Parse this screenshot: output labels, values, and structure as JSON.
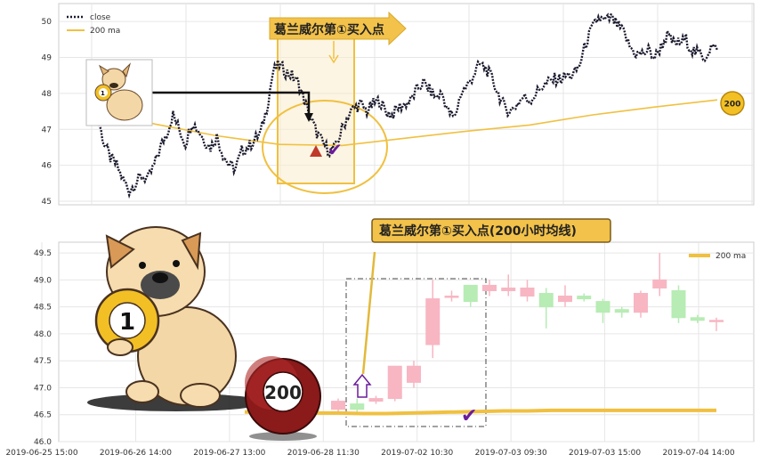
{
  "chart_data": [
    {
      "type": "line",
      "title": "",
      "legend": {
        "placement": "top-left",
        "entries": [
          "close",
          "200 ma"
        ]
      },
      "ylim": [
        44.9,
        50.5
      ],
      "y_ticks": [
        "45",
        "46",
        "47",
        "48",
        "49",
        "50"
      ],
      "grid": true,
      "annotation_label": "葛兰威尔第①买入点",
      "ma_badge": "200",
      "series": [
        {
          "name": "close",
          "style": "dotted",
          "color": "#1a1a2e",
          "x": [
            0,
            4,
            8,
            12,
            16,
            20,
            24,
            28,
            32,
            36,
            40,
            44,
            48,
            52,
            56,
            60,
            64,
            68,
            72,
            76,
            80,
            84,
            88,
            92,
            96,
            100,
            104,
            108,
            112,
            116,
            120,
            124,
            128,
            132,
            136,
            140,
            144,
            148,
            152,
            156,
            160,
            164,
            168,
            172,
            176,
            180,
            184,
            188,
            192,
            196,
            200,
            204,
            208,
            212,
            216,
            220,
            224,
            228,
            232,
            236,
            240,
            244,
            248,
            252,
            256,
            260,
            264,
            268,
            272,
            276,
            280,
            284,
            288,
            292,
            296,
            300,
            304,
            308,
            312,
            316,
            320,
            324,
            328,
            332,
            336,
            340,
            344,
            348,
            352,
            356,
            360,
            364,
            368,
            372,
            376,
            380,
            384,
            388,
            392,
            396,
            400
          ],
          "values": [
            48.0,
            47.3,
            46.6,
            46.2,
            46.0,
            45.6,
            45.3,
            45.5,
            45.7,
            45.6,
            46.0,
            46.5,
            46.9,
            47.4,
            47.0,
            46.6,
            47.2,
            47.0,
            46.7,
            46.5,
            46.8,
            46.3,
            46.0,
            45.9,
            46.4,
            46.5,
            46.7,
            46.9,
            47.6,
            48.6,
            48.8,
            48.6,
            48.5,
            48.3,
            47.8,
            47.3,
            46.9,
            46.6,
            46.4,
            46.5,
            47.0,
            47.4,
            47.6,
            47.7,
            47.5,
            47.7,
            47.8,
            47.5,
            47.4,
            47.6,
            47.7,
            47.8,
            48.1,
            48.3,
            48.1,
            47.9,
            48.0,
            47.5,
            47.3,
            48.0,
            48.2,
            48.5,
            48.8,
            48.7,
            48.4,
            48.0,
            47.6,
            47.5,
            47.7,
            47.9,
            47.8,
            48.0,
            48.2,
            48.3,
            48.4,
            48.4,
            48.5,
            48.5,
            48.8,
            49.4,
            49.8,
            50.1,
            50.0,
            50.1,
            49.9,
            49.7,
            49.3,
            49.1,
            49.1,
            49.2,
            49.0,
            49.3,
            49.6,
            49.4,
            49.4,
            49.5,
            49.2,
            49.1,
            49.0,
            49.3,
            49.2
          ]
        },
        {
          "name": "200 ma",
          "style": "solid",
          "color": "#f0c040",
          "x": [
            0,
            40,
            80,
            120,
            160,
            200,
            240,
            280,
            320,
            360,
            400
          ],
          "values": [
            47.8,
            47.15,
            46.82,
            46.58,
            46.55,
            46.75,
            46.95,
            47.12,
            47.4,
            47.62,
            47.82
          ]
        }
      ]
    },
    {
      "type": "candlestick",
      "title": "",
      "legend": {
        "placement": "top-right",
        "entries": [
          "200 ma"
        ]
      },
      "ylim": [
        46.0,
        49.7
      ],
      "y_ticks": [
        "46.0",
        "46.5",
        "47.0",
        "47.5",
        "48.0",
        "48.5",
        "49.0",
        "49.5"
      ],
      "x_ticks": [
        "2019-06-25 15:00",
        "2019-06-26 14:00",
        "2019-06-27 13:00",
        "2019-06-28 11:30",
        "2019-07-02 10:30",
        "2019-07-03 09:30",
        "2019-07-03 15:00",
        "2019-07-04 14:00"
      ],
      "grid": true,
      "annotation_label": "葛兰威尔第①买入点(200小时均线)",
      "ball_labels": {
        "one": "1",
        "two_hundred": "200"
      },
      "candles": [
        {
          "o": 46.6,
          "c": 46.75,
          "h": 46.8,
          "l": 46.55
        },
        {
          "o": 46.7,
          "c": 46.6,
          "h": 46.8,
          "l": 46.55
        },
        {
          "o": 46.75,
          "c": 46.8,
          "h": 46.85,
          "l": 46.7
        },
        {
          "o": 46.8,
          "c": 47.4,
          "h": 47.4,
          "l": 46.75
        },
        {
          "o": 47.1,
          "c": 47.4,
          "h": 47.5,
          "l": 47.0
        },
        {
          "o": 47.8,
          "c": 48.65,
          "h": 49.0,
          "l": 47.55
        },
        {
          "o": 48.7,
          "c": 48.7,
          "h": 48.8,
          "l": 48.6
        },
        {
          "o": 48.9,
          "c": 48.6,
          "h": 48.9,
          "l": 48.5
        },
        {
          "o": 48.8,
          "c": 48.9,
          "h": 49.0,
          "l": 48.7
        },
        {
          "o": 48.8,
          "c": 48.85,
          "h": 49.1,
          "l": 48.7
        },
        {
          "o": 48.7,
          "c": 48.85,
          "h": 49.0,
          "l": 48.6
        },
        {
          "o": 48.75,
          "c": 48.5,
          "h": 48.85,
          "l": 48.1
        },
        {
          "o": 48.6,
          "c": 48.7,
          "h": 48.9,
          "l": 48.5
        },
        {
          "o": 48.7,
          "c": 48.65,
          "h": 48.75,
          "l": 48.6
        },
        {
          "o": 48.6,
          "c": 48.4,
          "h": 48.65,
          "l": 48.2
        },
        {
          "o": 48.45,
          "c": 48.4,
          "h": 48.5,
          "l": 48.3
        },
        {
          "o": 48.4,
          "c": 48.75,
          "h": 48.8,
          "l": 48.3
        },
        {
          "o": 48.85,
          "c": 49.0,
          "h": 49.5,
          "l": 48.7
        },
        {
          "o": 48.8,
          "c": 48.3,
          "h": 48.9,
          "l": 48.2
        },
        {
          "o": 48.3,
          "c": 48.25,
          "h": 48.35,
          "l": 48.2
        },
        {
          "o": 48.25,
          "c": 48.25,
          "h": 48.3,
          "l": 48.05
        }
      ],
      "ma_values": [
        46.55,
        46.55,
        46.54,
        46.53,
        46.53,
        46.52,
        46.52,
        46.53,
        46.54,
        46.55,
        46.56,
        46.57,
        46.57,
        46.58,
        46.58,
        46.58,
        46.58,
        46.58,
        46.58,
        46.58,
        46.58
      ],
      "colors": {
        "up": "#f7b6c2",
        "down": "#b7ecb4",
        "ma": "#f0c040"
      }
    }
  ]
}
